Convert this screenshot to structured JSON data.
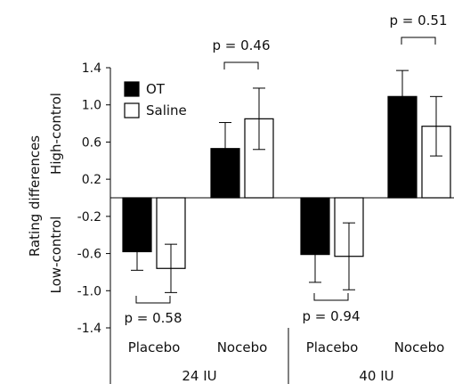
{
  "chart_data": {
    "type": "bar",
    "title": "",
    "ylim": [
      -1.4,
      1.4
    ],
    "yticks": [
      "1.4",
      "1.0",
      "0.6",
      "0.2",
      "-0.2",
      "-0.6",
      "-1.0",
      "-1.4"
    ],
    "ylabel_main": "Rating differences",
    "ylabel_high": "High-control",
    "ylabel_low": "Low-control",
    "categories": [
      "Placebo",
      "Nocebo",
      "Placebo",
      "Nocebo"
    ],
    "groups": [
      "24 IU",
      "40 IU"
    ],
    "series": [
      {
        "name": "OT",
        "color": "#000000",
        "values": [
          -0.58,
          0.53,
          -0.61,
          1.09
        ],
        "errors": [
          0.2,
          0.28,
          0.3,
          0.28
        ]
      },
      {
        "name": "Saline",
        "color": "#ffffff",
        "values": [
          -0.76,
          0.85,
          -0.63,
          0.77
        ],
        "errors": [
          0.26,
          0.33,
          0.36,
          0.32
        ]
      }
    ],
    "annotations": [
      "p = 0.58",
      "p = 0.46",
      "p = 0.94",
      "p = 0.51"
    ],
    "legend_position": "top-left"
  }
}
